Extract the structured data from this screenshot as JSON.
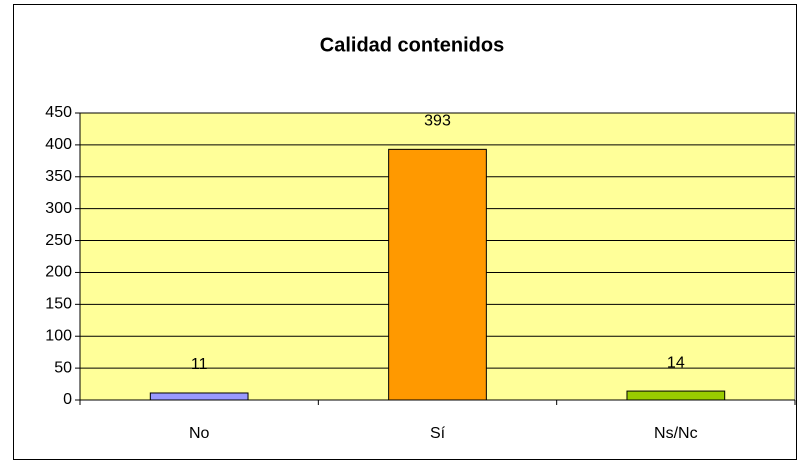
{
  "chart_data": {
    "type": "bar",
    "title": "Calidad contenidos",
    "categories": [
      "No",
      "Sí",
      "Ns/Nc"
    ],
    "values": [
      11,
      393,
      14
    ],
    "colors": [
      "#9999ff",
      "#ff9900",
      "#99cc00"
    ],
    "ylim": [
      0,
      450
    ],
    "yticks": [
      0,
      50,
      100,
      150,
      200,
      250,
      300,
      350,
      400,
      450
    ],
    "grid": true
  }
}
